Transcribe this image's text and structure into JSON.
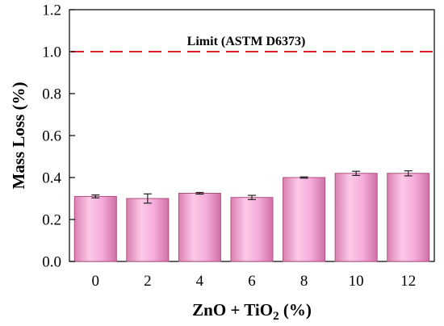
{
  "chart_data": {
    "type": "bar",
    "categories": [
      "0",
      "2",
      "4",
      "6",
      "8",
      "10",
      "12"
    ],
    "values": [
      0.31,
      0.3,
      0.325,
      0.305,
      0.4,
      0.42,
      0.42
    ],
    "errors": [
      0.007,
      0.022,
      0.004,
      0.01,
      0.003,
      0.01,
      0.012
    ],
    "title": "",
    "xlabel": "ZnO + TiO2 (%)",
    "ylabel": "Mass Loss (%)",
    "ylim": [
      0,
      1.2
    ],
    "yticks": [
      "0.0",
      "0.2",
      "0.4",
      "0.6",
      "0.8",
      "1.0",
      "1.2"
    ],
    "ytick_values": [
      0,
      0.2,
      0.4,
      0.6,
      0.8,
      1.0,
      1.2
    ],
    "limit": {
      "value": 1.0,
      "label": "Limit (ASTM D6373)",
      "style": "dashed",
      "color": "#e8242a"
    },
    "bar_color": "#f4a6d2",
    "bar_edge_color": "#b0507e",
    "grid": false,
    "legend": "none"
  }
}
